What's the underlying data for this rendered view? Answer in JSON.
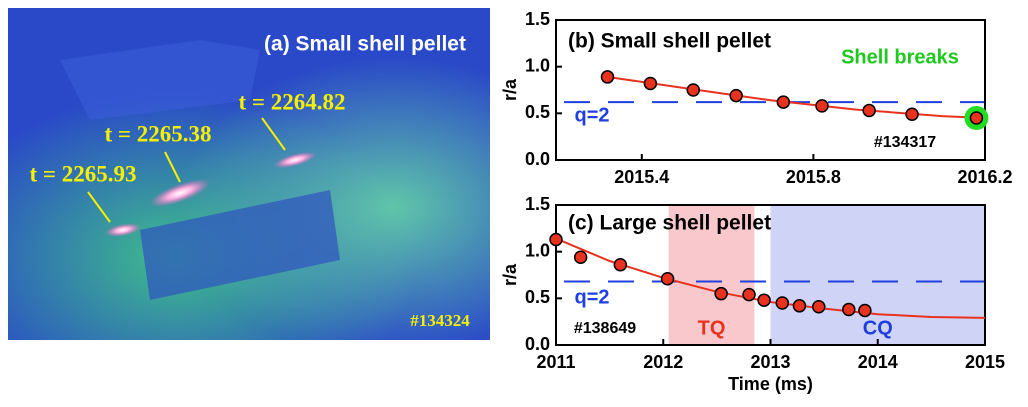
{
  "image": {
    "title": "(a) Small shell pellet",
    "labels": [
      "t = 2264.82",
      "t = 2265.38",
      "t = 2265.93"
    ],
    "shot": "#134324"
  },
  "chart_data": [
    {
      "type": "scatter",
      "title": "(b) Small shell pellet",
      "ylabel": "r/a",
      "x": [
        2015.32,
        2015.42,
        2015.52,
        2015.62,
        2015.73,
        2015.82,
        2015.93,
        2016.03,
        2016.18
      ],
      "values": [
        0.89,
        0.82,
        0.75,
        0.69,
        0.62,
        0.58,
        0.53,
        0.49,
        0.45
      ],
      "color": "#e8321e",
      "fit": {
        "x": [
          2015.32,
          2015.5,
          2015.7,
          2015.9,
          2016.1,
          2016.2
        ],
        "values": [
          0.89,
          0.77,
          0.64,
          0.54,
          0.47,
          0.45
        ],
        "color": "#e8321e"
      },
      "hline": {
        "value": 0.62,
        "label": "q=2",
        "color": "#1f3fe0"
      },
      "callout": "Shell breaks",
      "shot": "#134317",
      "xlim": [
        2015.2,
        2016.2
      ],
      "xticks": [
        2015.4,
        2015.8,
        2016.2
      ],
      "ylim": [
        0,
        1.5
      ],
      "yticks": [
        {
          "value": 0,
          "label": "0.0"
        },
        0.5,
        {
          "value": 1,
          "label": "1.0"
        },
        1.5
      ]
    },
    {
      "type": "scatter",
      "title": "(c) Large shell pellet",
      "ylabel": "r/a",
      "xlabel": "Time (ms)",
      "x": [
        2011.0,
        2011.23,
        2011.6,
        2012.04,
        2012.54,
        2012.8,
        2012.94,
        2013.11,
        2013.27,
        2013.45,
        2013.73,
        2013.88
      ],
      "values": [
        1.13,
        0.94,
        0.86,
        0.71,
        0.55,
        0.54,
        0.48,
        0.45,
        0.42,
        0.41,
        0.38,
        0.37
      ],
      "color": "#e8321e",
      "fit": {
        "x": [
          2011,
          2011.5,
          2012,
          2012.5,
          2013,
          2013.5,
          2014,
          2014.5,
          2015
        ],
        "values": [
          1.14,
          0.9,
          0.72,
          0.57,
          0.46,
          0.39,
          0.33,
          0.3,
          0.29
        ],
        "color": "#e8321e"
      },
      "hline": {
        "value": 0.68,
        "label": "q=2",
        "color": "#1f3fe0"
      },
      "spans": [
        {
          "label": "TQ",
          "start": 2012.05,
          "end": 2012.85,
          "color": "#f8c8cc",
          "text_color": "#e8321e"
        },
        {
          "label": "CQ",
          "start": 2013.0,
          "end": 2015.0,
          "color": "#cfd3f6",
          "text_color": "#1f3fe0"
        }
      ],
      "shot": "#138649",
      "xlim": [
        2011,
        2015
      ],
      "xticks": [
        2011,
        2012,
        2013,
        2014,
        2015
      ],
      "ylim": [
        0,
        1.5
      ],
      "yticks": [
        {
          "value": 0,
          "label": "0.0"
        },
        0.5,
        {
          "value": 1,
          "label": "1.0"
        },
        1.5
      ]
    }
  ]
}
